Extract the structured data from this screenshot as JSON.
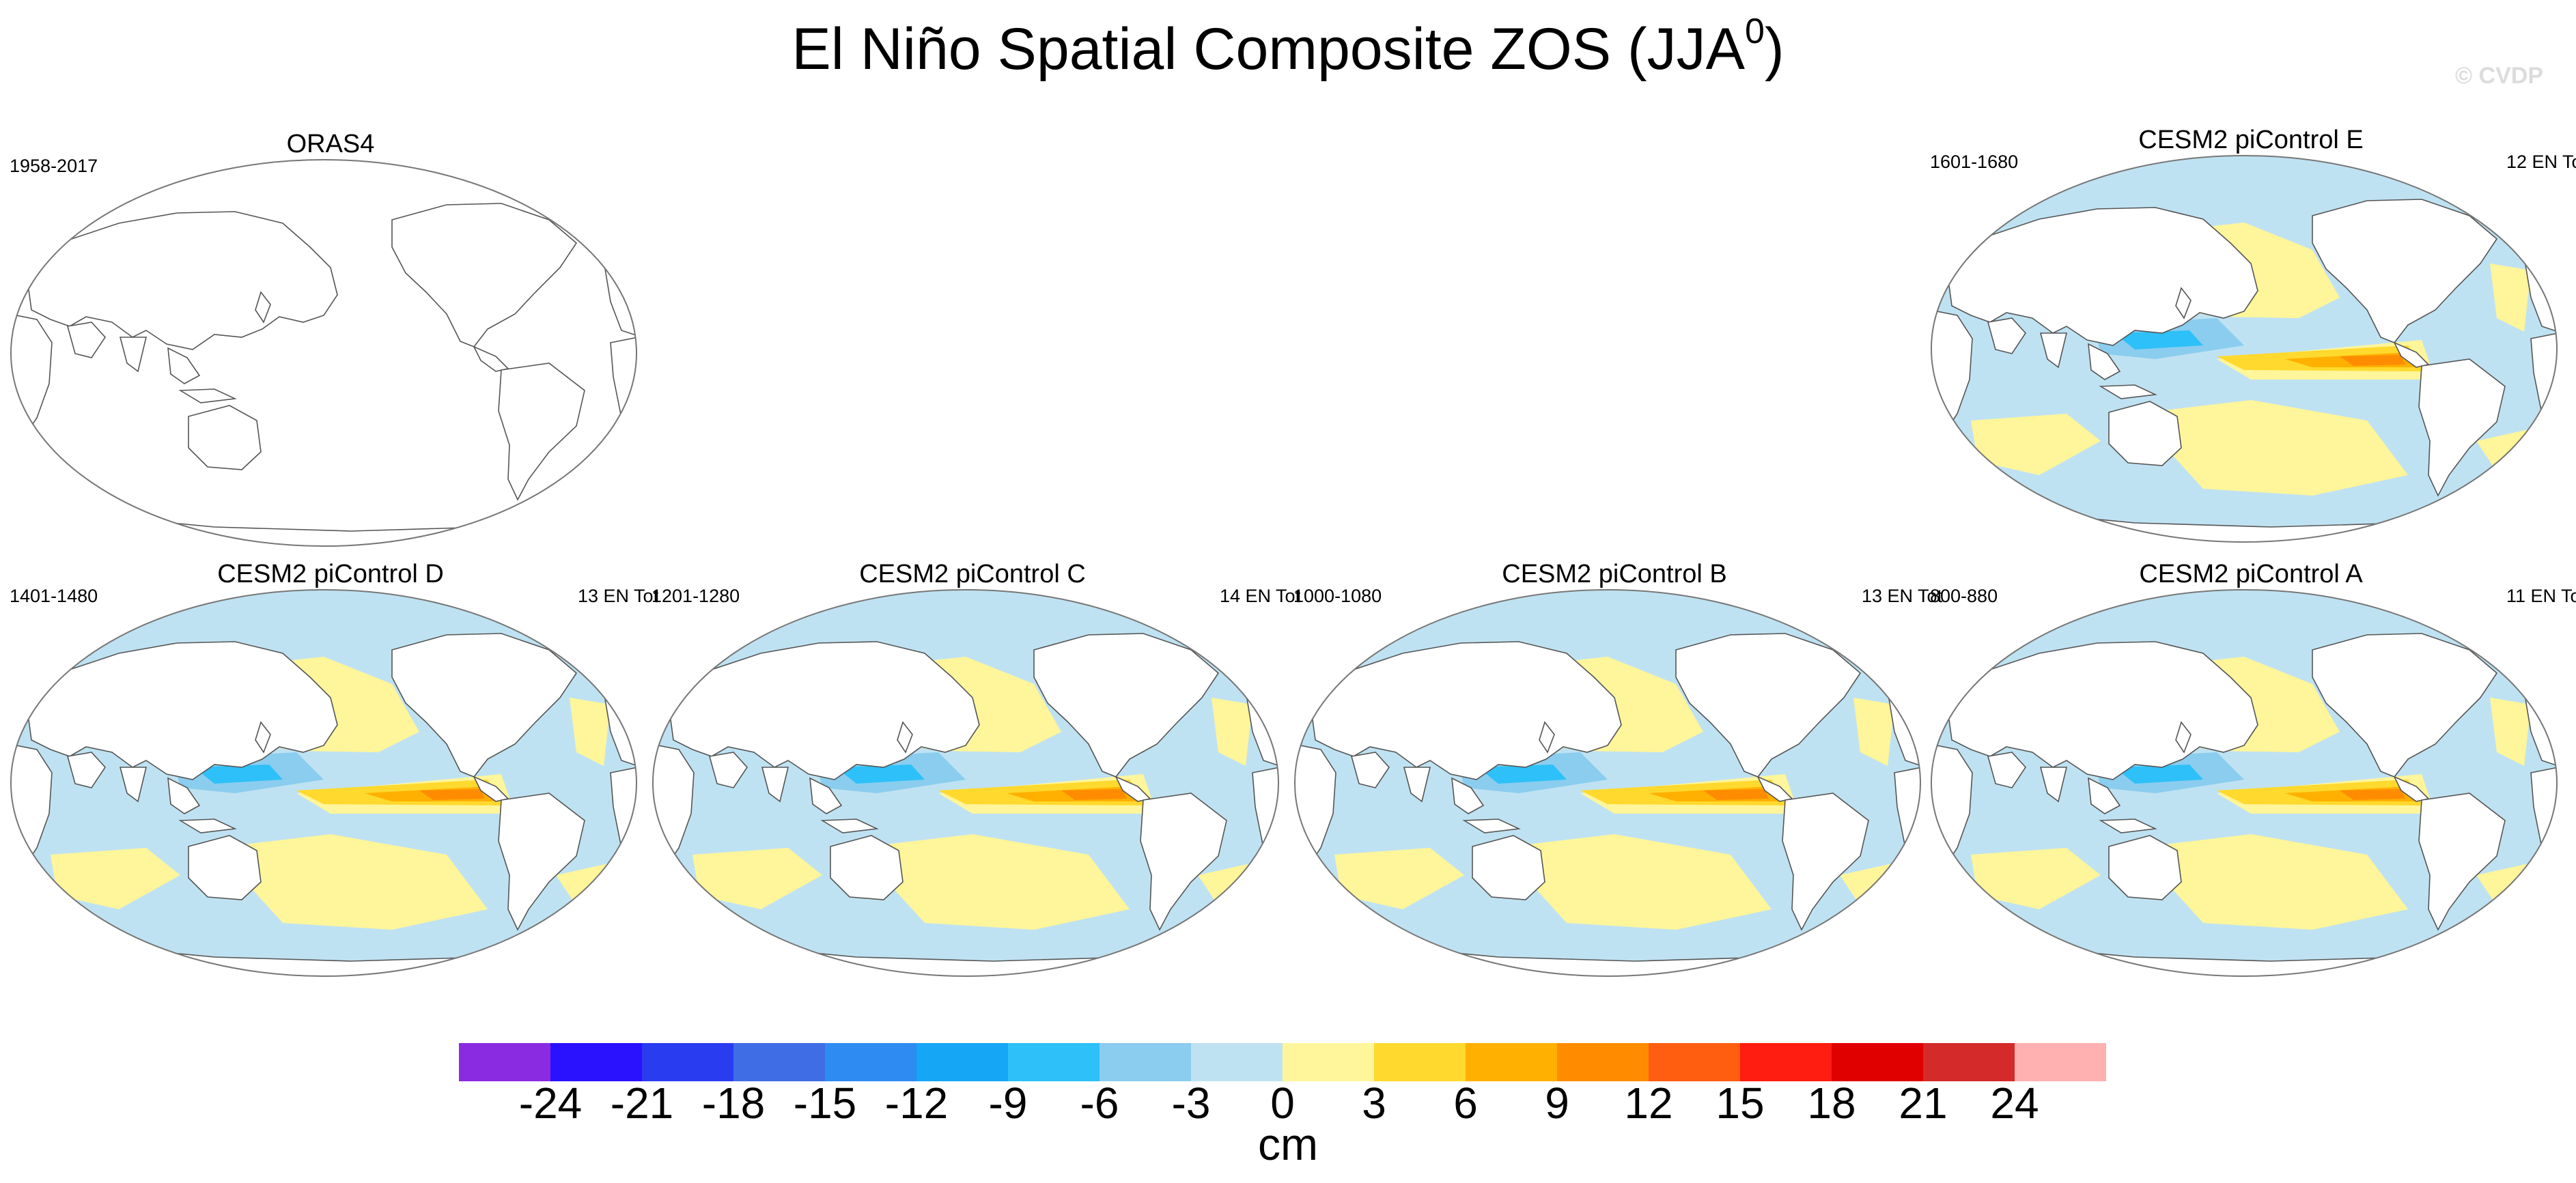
{
  "title_main": "El Niño Spatial Composite ZOS (JJA",
  "title_sup": "0",
  "title_close": ")",
  "watermark": "© CVDP",
  "panels": [
    {
      "title": "ORAS4",
      "years": "1958-2017",
      "count": "",
      "filled": false
    },
    {
      "title": "CESM2 piControl E",
      "years": "1601-1680",
      "count": "12 EN To",
      "filled": true
    },
    {
      "title": "CESM2 piControl D",
      "years": "1401-1480",
      "count": "13 EN Tot",
      "filled": true
    },
    {
      "title": "CESM2 piControl C",
      "years": "1201-1280",
      "count": "14 EN Tot",
      "filled": true
    },
    {
      "title": "CESM2 piControl B",
      "years": "1000-1080",
      "count": "13 EN Tot",
      "filled": true
    },
    {
      "title": "CESM2 piControl A",
      "years": "800-880",
      "count": "11 EN To",
      "filled": true
    }
  ],
  "colorbar": {
    "colors": [
      "#8a2be2",
      "#2a12ff",
      "#2a3cf0",
      "#3f6de6",
      "#2d8bf2",
      "#16a6f6",
      "#2ec0f8",
      "#8acdee",
      "#bfe2f2",
      "#fff59a",
      "#ffd92d",
      "#ffb000",
      "#ff8c00",
      "#ff5d10",
      "#ff1c10",
      "#e00000",
      "#d42a2a",
      "#ffb0b0"
    ],
    "ticks": [
      "-24",
      "-21",
      "-18",
      "-15",
      "-12",
      "-9",
      "-6",
      "-3",
      "0",
      "3",
      "6",
      "9",
      "12",
      "15",
      "18",
      "21",
      "24"
    ],
    "units": "cm"
  },
  "map_colors": {
    "ocean_pos": "#fff59a",
    "ocean_neg": "#bfe2f2",
    "mid_neg": "#8acdee",
    "strong_neg": "#2ec0f8",
    "warm": "#ffd92d",
    "hot": "#ffb000",
    "hotter": "#ff8c00",
    "land": "#ffffff",
    "coast": "#555555"
  }
}
